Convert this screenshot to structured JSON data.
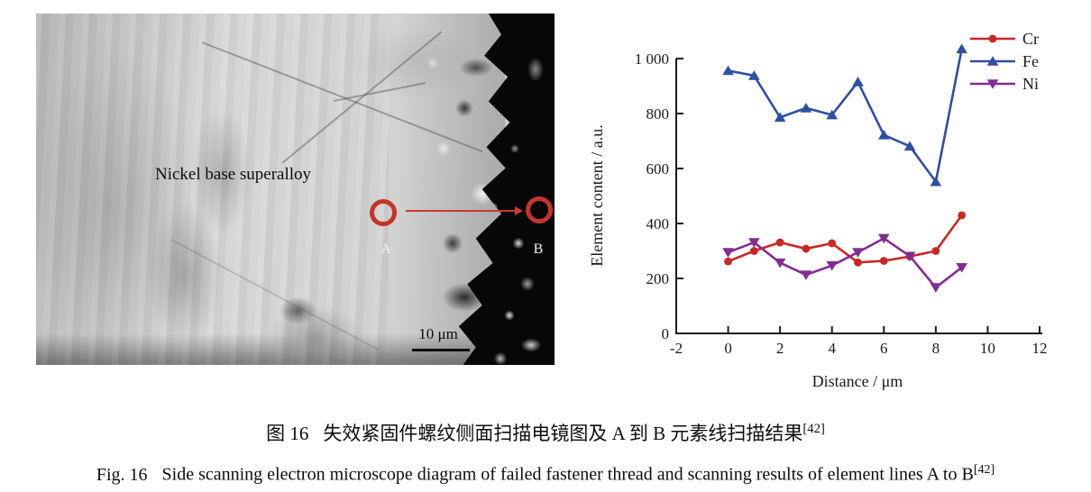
{
  "figure": {
    "sem_panel": {
      "material_label": "Nickel base superalloy",
      "point_a_label": "A",
      "point_b_label": "B",
      "scalebar_label": "10 μm"
    },
    "caption_zh": {
      "prefix": "图 16",
      "text": "失效紧固件螺纹侧面扫描电镜图及 A 到 B 元素线扫描结果",
      "ref": "[42]"
    },
    "caption_en": {
      "prefix": "Fig. 16",
      "text": "Side scanning electron microscope diagram of failed fastener thread and scanning results of element lines A to B",
      "ref": "[42]"
    }
  },
  "colors": {
    "cr_red": "#cb2724",
    "fe_blue": "#2e4fa3",
    "ni_purple": "#812d92",
    "annotation_red": "#c4342d",
    "axis_black": "#1a1a1a"
  },
  "chart_data": {
    "type": "line",
    "title": "",
    "xlabel": "Distance / μm",
    "ylabel": "Element content / a.u.",
    "xlim": [
      -2,
      12
    ],
    "ylim": [
      0,
      1000
    ],
    "xticks": [
      -2,
      0,
      2,
      4,
      6,
      8,
      10,
      12
    ],
    "ytick_values": [
      0,
      200,
      400,
      600,
      800,
      1000
    ],
    "ytick_labels": [
      "0",
      "200",
      "400",
      "600",
      "800",
      "1 000"
    ],
    "grid": false,
    "legend_position": "top-right",
    "x": [
      0,
      1,
      2,
      3,
      4,
      5,
      6,
      7,
      8,
      9
    ],
    "series": [
      {
        "name": "Cr",
        "color": "#cb2724",
        "marker": "circle",
        "values": [
          262,
          300,
          331,
          308,
          328,
          258,
          264,
          280,
          300,
          430
        ]
      },
      {
        "name": "Fe",
        "color": "#2e4fa3",
        "marker": "triangle-up",
        "values": [
          956,
          938,
          786,
          820,
          795,
          915,
          722,
          681,
          552,
          1035
        ]
      },
      {
        "name": "Ni",
        "color": "#812d92",
        "marker": "triangle-down",
        "values": [
          295,
          331,
          257,
          213,
          247,
          295,
          346,
          281,
          167,
          240
        ]
      }
    ]
  }
}
